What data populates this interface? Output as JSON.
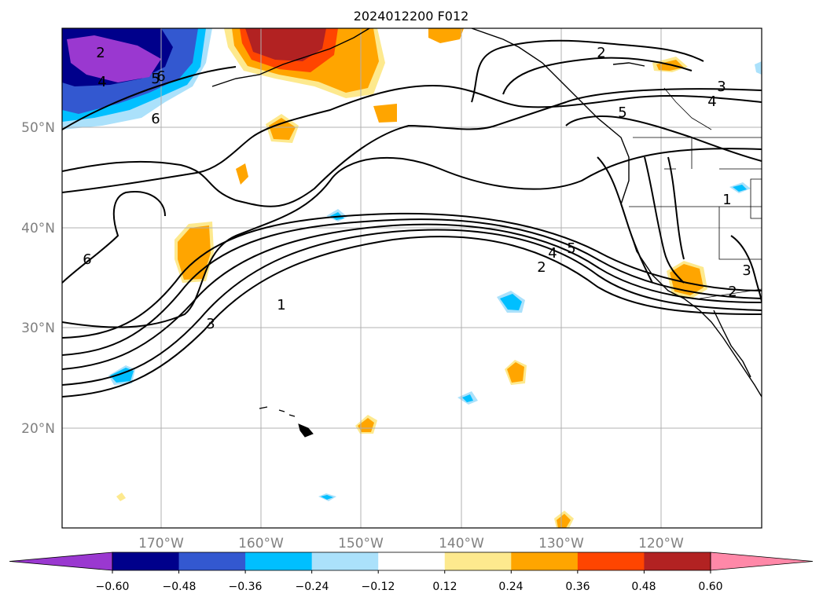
{
  "title": "2024012200 F012",
  "lat_labels": [
    "50°N",
    "40°N",
    "30°N",
    "20°N"
  ],
  "lon_labels": [
    "170°W",
    "160°W",
    "150°W",
    "140°W",
    "130°W",
    "120°W"
  ],
  "colorbar": {
    "ticks": [
      "−0.60",
      "−0.48",
      "−0.36",
      "−0.24",
      "−0.12",
      "0.12",
      "0.24",
      "0.36",
      "0.48",
      "0.60"
    ],
    "colors": [
      "#9a38d0",
      "#00008b",
      "#3358d0",
      "#00bfff",
      "#abe1fb",
      "#ffffff",
      "#fde98e",
      "#ffa500",
      "#ff4500",
      "#b22222",
      "#ff88a8"
    ]
  },
  "contour_labels": [
    "2",
    "4",
    "5",
    "6",
    "6",
    "2",
    "3",
    "4",
    "5",
    "1",
    "5",
    "4",
    "2",
    "1",
    "3",
    "6",
    "3",
    "2"
  ],
  "colors": {
    "grid": "#b0b0b0",
    "contour": "#000000",
    "axis_label": "#808080"
  }
}
